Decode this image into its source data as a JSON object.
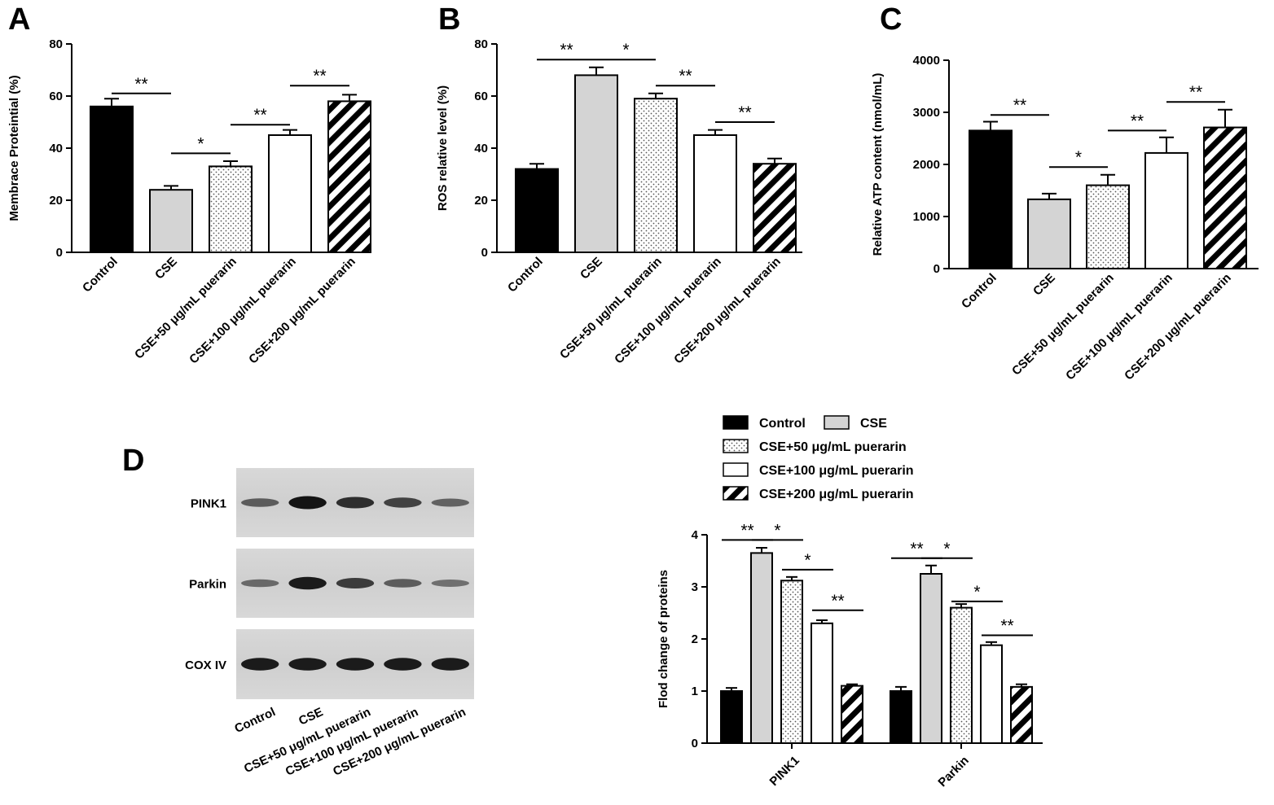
{
  "panels": {
    "A": {
      "letter": "A"
    },
    "B": {
      "letter": "B"
    },
    "C": {
      "letter": "C"
    },
    "D": {
      "letter": "D"
    }
  },
  "groups": [
    "Control",
    "CSE",
    "CSE+50 μg/mL puerarin",
    "CSE+100 μg/mL puerarin",
    "CSE+200 μg/mL puerarin"
  ],
  "group_fills": [
    "solid-black",
    "solid-lightgray",
    "dotted",
    "white",
    "diagonal-hatch"
  ],
  "colors": {
    "black": "#000000",
    "lightgray": "#d4d4d4",
    "white": "#ffffff"
  },
  "western_blot": {
    "bands": [
      "PINK1",
      "Parkin",
      "COX IV"
    ],
    "lane_labels": [
      "Control",
      "CSE",
      "CSE+50 μg/mL puerarin",
      "CSE+100 μg/mL puerarin",
      "CSE+200 μg/mL puerarin"
    ],
    "relative_intensity": {
      "PINK1": [
        0.45,
        1.0,
        0.8,
        0.65,
        0.4
      ],
      "Parkin": [
        0.35,
        0.95,
        0.7,
        0.45,
        0.3
      ],
      "COX IV": [
        0.95,
        0.95,
        0.95,
        0.95,
        0.95
      ]
    }
  },
  "legend": {
    "entries": [
      "Control",
      "CSE",
      "CSE+50 μg/mL puerarin",
      "CSE+100 μg/mL puerarin",
      "CSE+200 μg/mL puerarin"
    ]
  },
  "chart_data": [
    {
      "id": "A",
      "type": "bar",
      "categories": [
        "Control",
        "CSE",
        "CSE+50 μg/mL puerarin",
        "CSE+100 μg/mL puerarin",
        "CSE+200 μg/mL puerarin"
      ],
      "values": [
        56,
        24,
        33,
        45,
        58
      ],
      "errors": [
        3,
        1.5,
        2,
        2,
        2.5
      ],
      "ylabel": "Membrace Proteintial  (%)",
      "ylim": [
        0,
        80
      ],
      "yticks": [
        "0",
        "20",
        "40",
        "60",
        "80"
      ],
      "significance": [
        {
          "from": 0,
          "to": 1,
          "label": "**",
          "y": 61
        },
        {
          "from": 1,
          "to": 2,
          "label": "*",
          "y": 38
        },
        {
          "from": 2,
          "to": 3,
          "label": "**",
          "y": 49
        },
        {
          "from": 3,
          "to": 4,
          "label": "**",
          "y": 64
        }
      ]
    },
    {
      "id": "B",
      "type": "bar",
      "categories": [
        "Control",
        "CSE",
        "CSE+50 μg/mL puerarin",
        "CSE+100 μg/mL puerarin",
        "CSE+200 μg/mL puerarin"
      ],
      "values": [
        32,
        68,
        59,
        45,
        34
      ],
      "errors": [
        2,
        3,
        2,
        2,
        2
      ],
      "ylabel": "ROS relative level (%)",
      "ylim": [
        0,
        80
      ],
      "yticks": [
        "0",
        "20",
        "40",
        "60",
        "80"
      ],
      "significance": [
        {
          "from": 0,
          "to": 1,
          "label": "**",
          "y": 74
        },
        {
          "from": 1,
          "to": 2,
          "label": "*",
          "y": 74
        },
        {
          "from": 2,
          "to": 3,
          "label": "**",
          "y": 64
        },
        {
          "from": 3,
          "to": 4,
          "label": "**",
          "y": 50
        }
      ]
    },
    {
      "id": "C",
      "type": "bar",
      "categories": [
        "Control",
        "CSE",
        "CSE+50 μg/mL puerarin",
        "CSE+100 μg/mL puerarin",
        "CSE+200 μg/mL puerarin"
      ],
      "values": [
        2650,
        1330,
        1600,
        2220,
        2710
      ],
      "errors": [
        170,
        110,
        200,
        300,
        340
      ],
      "ylabel": "Relative ATP content (nmol/mL)",
      "ylim": [
        0,
        4000
      ],
      "yticks": [
        "0",
        "1000",
        "2000",
        "3000",
        "4000"
      ],
      "significance": [
        {
          "from": 0,
          "to": 1,
          "label": "**",
          "y": 2950
        },
        {
          "from": 1,
          "to": 2,
          "label": "*",
          "y": 1950
        },
        {
          "from": 2,
          "to": 3,
          "label": "**",
          "y": 2650
        },
        {
          "from": 3,
          "to": 4,
          "label": "**",
          "y": 3200
        }
      ]
    },
    {
      "id": "D",
      "type": "bar",
      "categories": [
        "PINK1",
        "Parkin"
      ],
      "series": [
        {
          "name": "Control",
          "values": [
            1.0,
            1.0
          ],
          "errors": [
            0.06,
            0.08
          ]
        },
        {
          "name": "CSE",
          "values": [
            3.65,
            3.25
          ],
          "errors": [
            0.1,
            0.16
          ]
        },
        {
          "name": "CSE+50 μg/mL puerarin",
          "values": [
            3.12,
            2.6
          ],
          "errors": [
            0.07,
            0.07
          ]
        },
        {
          "name": "CSE+100 μg/mL puerarin",
          "values": [
            2.3,
            1.88
          ],
          "errors": [
            0.06,
            0.06
          ]
        },
        {
          "name": "CSE+200 μg/mL puerarin",
          "values": [
            1.1,
            1.08
          ],
          "errors": [
            0.03,
            0.05
          ]
        }
      ],
      "ylabel": "Flod change of  proteins",
      "ylim": [
        0,
        4
      ],
      "yticks": [
        "0",
        "1",
        "2",
        "3",
        "4"
      ],
      "significance": [
        {
          "group": 0,
          "from": 0,
          "to": 1,
          "label": "**",
          "y": 3.9
        },
        {
          "group": 0,
          "from": 1,
          "to": 2,
          "label": "*",
          "y": 3.9
        },
        {
          "group": 0,
          "from": 2,
          "to": 3,
          "label": "*",
          "y": 3.33
        },
        {
          "group": 0,
          "from": 3,
          "to": 4,
          "label": "**",
          "y": 2.55
        },
        {
          "group": 1,
          "from": 0,
          "to": 1,
          "label": "**",
          "y": 3.55
        },
        {
          "group": 1,
          "from": 1,
          "to": 2,
          "label": "*",
          "y": 3.55
        },
        {
          "group": 1,
          "from": 2,
          "to": 3,
          "label": "*",
          "y": 2.72
        },
        {
          "group": 1,
          "from": 3,
          "to": 4,
          "label": "**",
          "y": 2.07
        }
      ]
    }
  ]
}
